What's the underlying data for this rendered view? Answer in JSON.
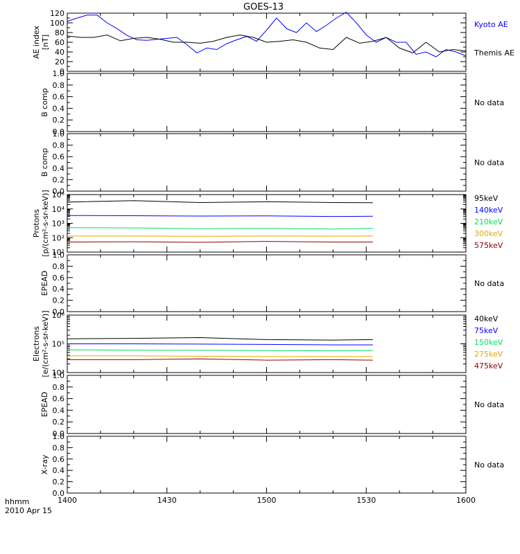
{
  "chart_data": [
    {
      "type": "line",
      "title": "GOES-13",
      "ylabel_lines": [
        "AE index",
        "[nT]"
      ],
      "ylim": [
        0,
        120
      ],
      "yticks": [
        0,
        20,
        40,
        60,
        80,
        100,
        120
      ],
      "xlim": [
        0,
        120
      ],
      "series": [
        {
          "name": "Kyoto AE",
          "color": "#0000ff",
          "x": [
            0,
            3,
            6,
            9,
            12,
            15,
            18,
            21,
            24,
            27,
            30,
            33,
            36,
            39,
            42,
            45,
            48,
            51,
            54,
            57,
            60,
            63,
            66,
            69,
            72,
            75,
            78,
            81,
            84,
            87,
            90,
            93,
            96,
            99,
            102,
            105,
            108,
            111,
            114,
            117,
            120
          ],
          "y": [
            103,
            110,
            116,
            116,
            100,
            88,
            74,
            65,
            64,
            66,
            68,
            70,
            55,
            38,
            48,
            45,
            57,
            65,
            72,
            62,
            85,
            110,
            88,
            80,
            100,
            82,
            95,
            110,
            122,
            100,
            75,
            60,
            70,
            60,
            60,
            35,
            40,
            30,
            45,
            40,
            32
          ]
        },
        {
          "name": "Themis AE",
          "color": "#000000",
          "x": [
            0,
            4,
            8,
            12,
            16,
            20,
            24,
            28,
            32,
            36,
            40,
            44,
            48,
            52,
            56,
            60,
            64,
            68,
            72,
            76,
            80,
            84,
            88,
            92,
            96,
            100,
            104,
            108,
            112,
            116,
            120
          ],
          "y": [
            73,
            70,
            70,
            75,
            63,
            68,
            70,
            66,
            60,
            60,
            58,
            62,
            70,
            75,
            70,
            60,
            62,
            65,
            60,
            48,
            45,
            70,
            58,
            62,
            70,
            48,
            38,
            60,
            40,
            45,
            42
          ]
        }
      ],
      "xlabel": ""
    },
    {
      "type": "line",
      "ylabel_lines": [
        "B comp"
      ],
      "ylim": [
        0,
        1
      ],
      "yticks": [
        0.0,
        0.2,
        0.4,
        0.6,
        0.8,
        1.0
      ],
      "side_note": "No data",
      "series": []
    },
    {
      "type": "line",
      "ylabel_lines": [
        "B comp"
      ],
      "ylim": [
        0,
        1
      ],
      "yticks": [
        0.0,
        0.2,
        0.4,
        0.6,
        0.8,
        1.0
      ],
      "side_note": "No data",
      "series": []
    },
    {
      "type": "line",
      "ylabel_lines": [
        "Protons",
        "[p/(cm²-s-sr-keV)]"
      ],
      "yscale": "log",
      "ylim": [
        10,
        100000
      ],
      "ytick_labels": [
        "10¹",
        "10²",
        "10³",
        "10⁴",
        "10⁵"
      ],
      "series": [
        {
          "name": "575keV",
          "color": "#8b0000",
          "x": [
            0,
            20,
            40,
            60,
            80,
            92
          ],
          "y": [
            50,
            52,
            48,
            55,
            50,
            50
          ]
        },
        {
          "name": "300keV",
          "color": "#e6a800",
          "x": [
            0,
            20,
            40,
            60,
            80,
            92
          ],
          "y": [
            130,
            130,
            125,
            130,
            128,
            130
          ]
        },
        {
          "name": "210keV",
          "color": "#00e060",
          "x": [
            0,
            20,
            40,
            60,
            80,
            92
          ],
          "y": [
            500,
            480,
            420,
            450,
            400,
            450
          ]
        },
        {
          "name": "140keV",
          "color": "#0000ff",
          "x": [
            0,
            20,
            40,
            60,
            80,
            92
          ],
          "y": [
            3500,
            3400,
            3200,
            3300,
            3000,
            3100
          ]
        },
        {
          "name": "95keV",
          "color": "#000000",
          "x": [
            0,
            20,
            40,
            60,
            80,
            92
          ],
          "y": [
            30000,
            38000,
            28000,
            32000,
            28000,
            27000
          ]
        }
      ]
    },
    {
      "type": "line",
      "ylabel_lines": [
        "EPEAD"
      ],
      "ylim": [
        0,
        1
      ],
      "yticks": [
        0.0,
        0.2,
        0.4,
        0.6,
        0.8,
        1.0
      ],
      "side_note": "No data",
      "series": []
    },
    {
      "type": "line",
      "ylabel_lines": [
        "Electrons",
        "[e/(cm²-s-sr-keV)]"
      ],
      "yscale": "log",
      "ylim": [
        10000,
        1000000
      ],
      "ytick_labels": [
        "10⁴",
        "10⁵",
        "10⁶"
      ],
      "series": [
        {
          "name": "475keV",
          "color": "#8b0000",
          "x": [
            0,
            20,
            40,
            60,
            80,
            92
          ],
          "y": [
            28000,
            28000,
            30000,
            27000,
            28000,
            27000
          ]
        },
        {
          "name": "275keV",
          "color": "#e6a800",
          "x": [
            0,
            20,
            40,
            60,
            80,
            92
          ],
          "y": [
            38000,
            38000,
            37000,
            36000,
            36000,
            36000
          ]
        },
        {
          "name": "150keV",
          "color": "#00e060",
          "x": [
            0,
            20,
            40,
            60,
            80,
            92
          ],
          "y": [
            62000,
            60000,
            60000,
            58000,
            57000,
            58000
          ]
        },
        {
          "name": "75keV",
          "color": "#0000ff",
          "x": [
            0,
            20,
            40,
            60,
            80,
            92
          ],
          "y": [
            100000,
            100000,
            98000,
            95000,
            92000,
            92000
          ]
        },
        {
          "name": "40keV",
          "color": "#000000",
          "x": [
            0,
            20,
            40,
            60,
            80,
            92
          ],
          "y": [
            150000,
            155000,
            165000,
            140000,
            135000,
            140000
          ]
        }
      ]
    },
    {
      "type": "line",
      "ylabel_lines": [
        "EPEAD"
      ],
      "ylim": [
        0,
        1
      ],
      "yticks": [
        0.0,
        0.2,
        0.4,
        0.6,
        0.8,
        1.0
      ],
      "side_note": "No data",
      "series": []
    },
    {
      "type": "line",
      "ylabel_lines": [
        "X-ray"
      ],
      "ylim": [
        0,
        1
      ],
      "yticks": [
        0.0,
        0.2,
        0.4,
        0.6,
        0.8,
        1.0
      ],
      "side_note": "No data",
      "series": []
    }
  ],
  "x_axis": {
    "tick_labels": [
      "1400",
      "1430",
      "1500",
      "1530",
      "1600"
    ],
    "tick_values": [
      0,
      30,
      60,
      90,
      120
    ],
    "range": [
      0,
      120
    ],
    "corner_label_1": "hhmm",
    "corner_label_2": "2010 Apr 15"
  },
  "colors": {
    "axis": "#000000",
    "background": "#ffffff"
  }
}
